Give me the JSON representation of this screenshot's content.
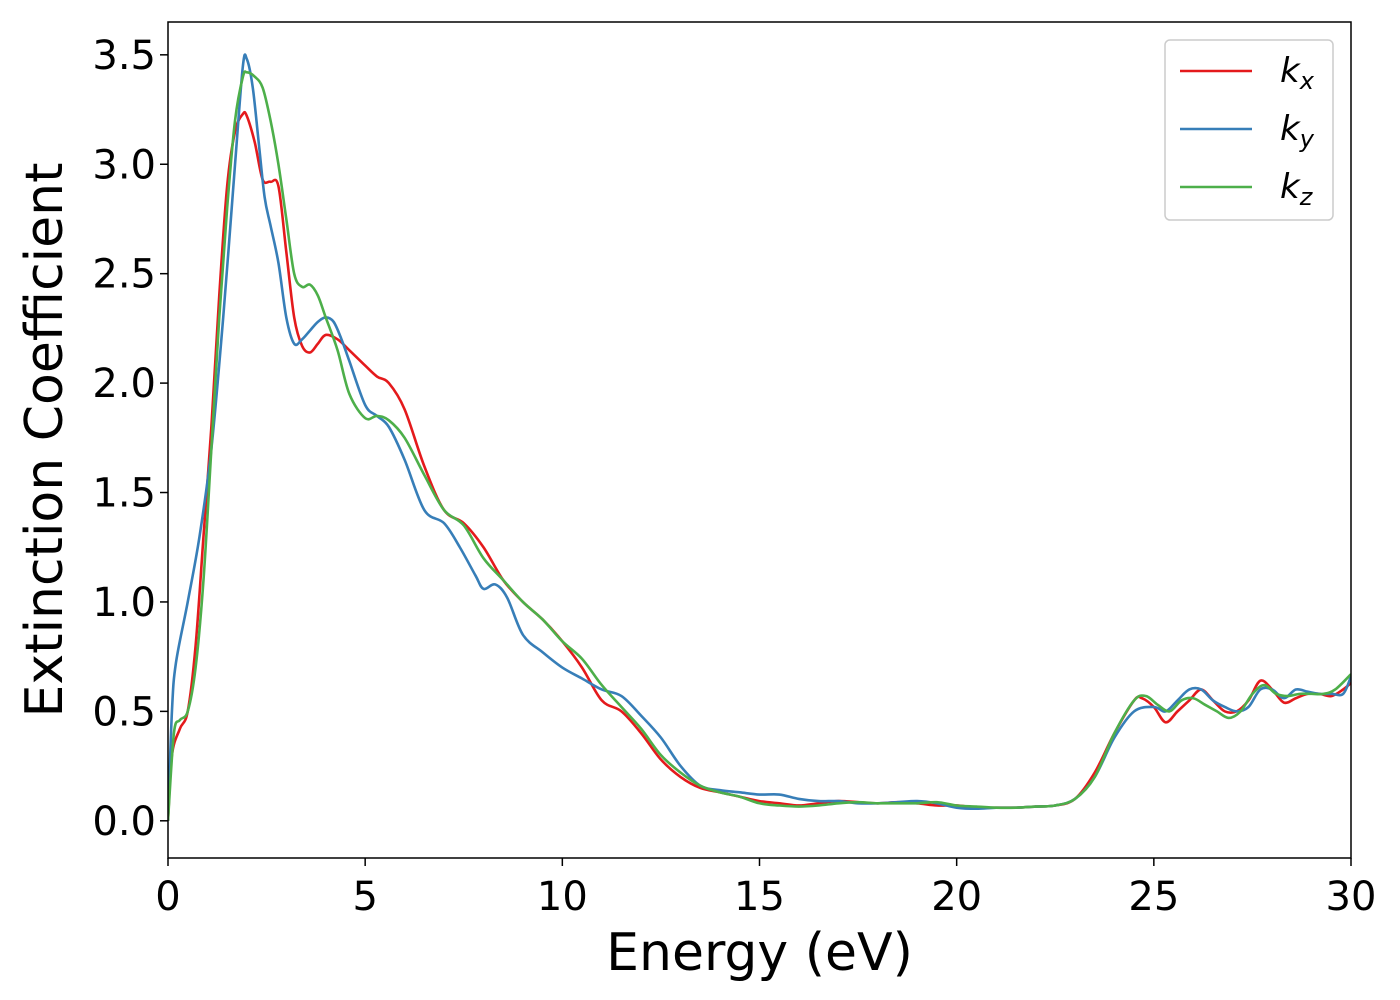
{
  "chart_data": {
    "type": "line",
    "title": "",
    "xlabel": "Energy (eV)",
    "ylabel": "Extinction Coefficient",
    "xlim": [
      0,
      30
    ],
    "ylim": [
      -0.17,
      3.65
    ],
    "xticks": [
      0,
      5,
      10,
      15,
      20,
      25,
      30
    ],
    "yticks": [
      0.0,
      0.5,
      1.0,
      1.5,
      2.0,
      2.5,
      3.0,
      3.5
    ],
    "xtick_labels": [
      "0",
      "5",
      "10",
      "15",
      "20",
      "25",
      "30"
    ],
    "ytick_labels": [
      "0.0",
      "0.5",
      "1.0",
      "1.5",
      "2.0",
      "2.5",
      "3.0",
      "3.5"
    ],
    "grid": false,
    "legend_position": "top-right",
    "series": [
      {
        "name": "k",
        "subscript": "x",
        "color": "#e41a1c",
        "x": [
          0,
          0.1,
          0.3,
          0.5,
          0.7,
          0.9,
          1.1,
          1.3,
          1.5,
          1.7,
          1.9,
          2.0,
          2.2,
          2.4,
          2.6,
          2.8,
          3.0,
          3.2,
          3.4,
          3.6,
          3.8,
          4.0,
          4.3,
          4.6,
          5.0,
          5.3,
          5.6,
          6.0,
          6.5,
          7.0,
          7.5,
          8.0,
          8.5,
          9.0,
          9.5,
          10.0,
          10.5,
          11.0,
          11.5,
          12.0,
          12.5,
          13.0,
          13.5,
          14.0,
          14.5,
          15.0,
          15.5,
          16.0,
          16.5,
          17.0,
          17.5,
          18.0,
          18.5,
          19.0,
          19.5,
          20.0,
          20.5,
          21.0,
          21.5,
          22.0,
          22.5,
          23.0,
          23.5,
          24.0,
          24.5,
          24.7,
          25.0,
          25.3,
          25.6,
          25.9,
          26.2,
          26.5,
          26.8,
          27.1,
          27.4,
          27.7,
          28.0,
          28.3,
          28.6,
          28.9,
          29.2,
          29.5,
          29.8,
          30.0
        ],
        "y": [
          0.0,
          0.3,
          0.42,
          0.5,
          0.8,
          1.3,
          1.8,
          2.4,
          2.9,
          3.15,
          3.23,
          3.22,
          3.1,
          2.93,
          2.92,
          2.9,
          2.6,
          2.3,
          2.17,
          2.14,
          2.18,
          2.22,
          2.2,
          2.15,
          2.08,
          2.03,
          2.0,
          1.88,
          1.62,
          1.42,
          1.36,
          1.25,
          1.1,
          1.0,
          0.92,
          0.82,
          0.7,
          0.55,
          0.5,
          0.4,
          0.28,
          0.2,
          0.15,
          0.13,
          0.11,
          0.09,
          0.08,
          0.07,
          0.08,
          0.09,
          0.085,
          0.08,
          0.085,
          0.08,
          0.07,
          0.07,
          0.06,
          0.06,
          0.06,
          0.065,
          0.07,
          0.1,
          0.22,
          0.4,
          0.55,
          0.56,
          0.52,
          0.45,
          0.5,
          0.55,
          0.6,
          0.55,
          0.5,
          0.5,
          0.55,
          0.64,
          0.6,
          0.54,
          0.56,
          0.58,
          0.58,
          0.57,
          0.6,
          0.63
        ]
      },
      {
        "name": "k",
        "subscript": "y",
        "color": "#377eb8",
        "x": [
          0,
          0.1,
          0.2,
          0.5,
          0.8,
          1.1,
          1.4,
          1.7,
          1.9,
          2.0,
          2.15,
          2.3,
          2.45,
          2.6,
          2.8,
          3.0,
          3.2,
          3.4,
          3.6,
          3.8,
          4.0,
          4.2,
          4.4,
          4.6,
          5.0,
          5.3,
          5.6,
          6.0,
          6.5,
          7.0,
          7.4,
          7.8,
          8.0,
          8.3,
          8.6,
          9.0,
          9.5,
          10.0,
          10.5,
          11.0,
          11.5,
          12.0,
          12.5,
          13.0,
          13.5,
          14.0,
          14.5,
          15.0,
          15.5,
          16.0,
          16.5,
          17.0,
          17.5,
          18.0,
          18.5,
          19.0,
          19.5,
          20.0,
          20.5,
          21.0,
          21.5,
          22.0,
          22.5,
          23.0,
          23.5,
          24.0,
          24.5,
          25.0,
          25.3,
          25.6,
          25.9,
          26.2,
          26.5,
          26.8,
          27.1,
          27.4,
          27.7,
          28.0,
          28.3,
          28.6,
          28.9,
          29.2,
          29.5,
          29.8,
          30.0
        ],
        "y": [
          0.0,
          0.5,
          0.72,
          1.0,
          1.3,
          1.7,
          2.3,
          3.0,
          3.45,
          3.48,
          3.35,
          3.1,
          2.85,
          2.72,
          2.55,
          2.3,
          2.18,
          2.2,
          2.24,
          2.28,
          2.3,
          2.28,
          2.2,
          2.1,
          1.9,
          1.85,
          1.8,
          1.65,
          1.42,
          1.36,
          1.25,
          1.12,
          1.06,
          1.08,
          1.02,
          0.85,
          0.77,
          0.7,
          0.65,
          0.6,
          0.57,
          0.48,
          0.38,
          0.25,
          0.16,
          0.14,
          0.13,
          0.12,
          0.12,
          0.1,
          0.09,
          0.09,
          0.08,
          0.08,
          0.085,
          0.09,
          0.08,
          0.06,
          0.055,
          0.06,
          0.06,
          0.065,
          0.07,
          0.1,
          0.2,
          0.38,
          0.5,
          0.52,
          0.5,
          0.55,
          0.6,
          0.6,
          0.55,
          0.52,
          0.5,
          0.52,
          0.6,
          0.6,
          0.56,
          0.6,
          0.59,
          0.58,
          0.58,
          0.58,
          0.66
        ]
      },
      {
        "name": "k",
        "subscript": "z",
        "color": "#4daf4a",
        "x": [
          0,
          0.15,
          0.3,
          0.5,
          0.7,
          0.9,
          1.1,
          1.3,
          1.5,
          1.7,
          1.9,
          2.0,
          2.2,
          2.4,
          2.6,
          2.8,
          3.0,
          3.2,
          3.4,
          3.6,
          3.8,
          4.0,
          4.3,
          4.6,
          5.0,
          5.3,
          5.6,
          6.0,
          6.5,
          7.0,
          7.5,
          8.0,
          8.5,
          9.0,
          9.5,
          10.0,
          10.5,
          11.0,
          11.5,
          12.0,
          12.5,
          13.0,
          13.5,
          14.0,
          14.5,
          15.0,
          15.5,
          16.0,
          16.5,
          17.0,
          17.5,
          18.0,
          18.5,
          19.0,
          19.5,
          20.0,
          20.5,
          21.0,
          21.5,
          22.0,
          22.5,
          23.0,
          23.5,
          24.0,
          24.5,
          24.8,
          25.1,
          25.4,
          25.7,
          26.0,
          26.3,
          26.6,
          26.9,
          27.2,
          27.5,
          27.8,
          28.1,
          28.4,
          28.7,
          29.0,
          29.3,
          29.6,
          30.0
        ],
        "y": [
          0.0,
          0.4,
          0.46,
          0.5,
          0.7,
          1.1,
          1.7,
          2.3,
          2.8,
          3.2,
          3.4,
          3.42,
          3.4,
          3.35,
          3.2,
          3.0,
          2.75,
          2.5,
          2.44,
          2.45,
          2.4,
          2.3,
          2.15,
          1.95,
          1.84,
          1.85,
          1.83,
          1.75,
          1.58,
          1.42,
          1.35,
          1.2,
          1.1,
          1.0,
          0.92,
          0.82,
          0.74,
          0.62,
          0.52,
          0.42,
          0.3,
          0.22,
          0.16,
          0.13,
          0.11,
          0.08,
          0.07,
          0.065,
          0.07,
          0.08,
          0.085,
          0.08,
          0.08,
          0.08,
          0.085,
          0.07,
          0.065,
          0.06,
          0.06,
          0.065,
          0.07,
          0.1,
          0.2,
          0.4,
          0.55,
          0.57,
          0.53,
          0.5,
          0.55,
          0.56,
          0.53,
          0.5,
          0.47,
          0.5,
          0.58,
          0.62,
          0.58,
          0.57,
          0.58,
          0.58,
          0.58,
          0.6,
          0.67
        ]
      }
    ]
  }
}
